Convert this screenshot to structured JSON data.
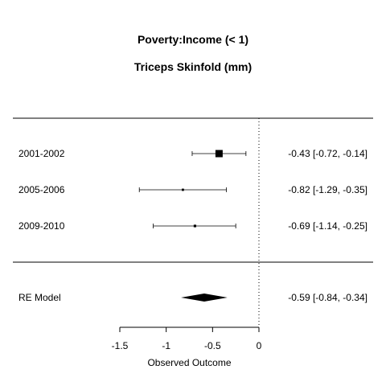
{
  "chart_data": {
    "type": "forest",
    "title": "Poverty:Income (< 1)",
    "subtitle": "Triceps Skinfold (mm)",
    "xlabel": "Observed Outcome",
    "xlim": [
      -1.5,
      0
    ],
    "xticks": [
      -1.5,
      -1,
      -0.5,
      0
    ],
    "xtick_labels": [
      "-1.5",
      "-1",
      "-0.5",
      "0"
    ],
    "reference_line": 0,
    "studies": [
      {
        "label": "2001-2002",
        "estimate": -0.43,
        "lower": -0.72,
        "upper": -0.14,
        "text": "-0.43 [-0.72, -0.14]",
        "weight": 1.0
      },
      {
        "label": "2005-2006",
        "estimate": -0.82,
        "lower": -1.29,
        "upper": -0.35,
        "text": "-0.82 [-1.29, -0.35]",
        "weight": 0.3
      },
      {
        "label": "2009-2010",
        "estimate": -0.69,
        "lower": -1.14,
        "upper": -0.25,
        "text": "-0.69 [-1.14, -0.25]",
        "weight": 0.35
      }
    ],
    "summary": {
      "label": "RE Model",
      "estimate": -0.59,
      "lower": -0.84,
      "upper": -0.34,
      "text": "-0.59 [-0.84, -0.34]"
    }
  }
}
